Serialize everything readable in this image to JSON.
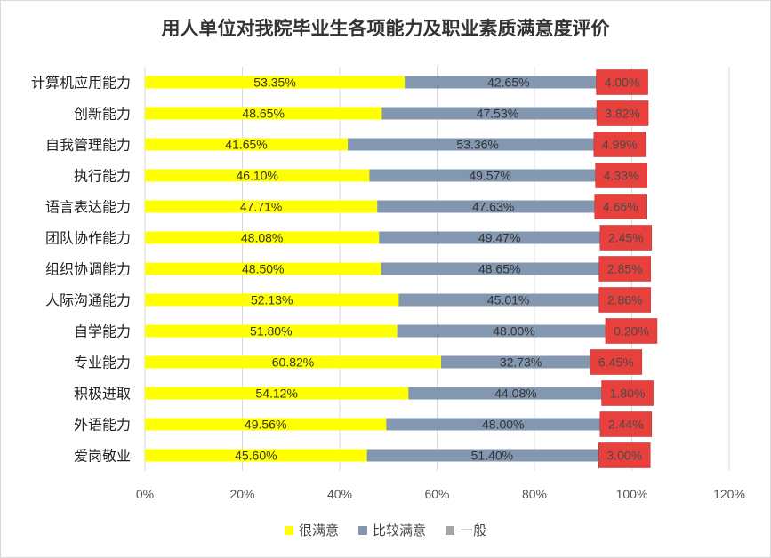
{
  "chart_data": {
    "type": "bar",
    "orientation": "horizontal",
    "stacked": true,
    "title": "用人单位对我院毕业生各项能力及职业素质满意度评价",
    "categories": [
      "计算机应用能力",
      "创新能力",
      "自我管理能力",
      "执行能力",
      "语言表达能力",
      "团队协作能力",
      "组织协调能力",
      "人际沟通能力",
      "自学能力",
      "专业能力",
      "积极进取",
      "外语能力",
      "爱岗敬业"
    ],
    "series": [
      {
        "name": "很满意",
        "color": "#ffff00",
        "values": [
          53.35,
          48.65,
          41.65,
          46.1,
          47.71,
          48.08,
          48.5,
          52.13,
          51.8,
          60.82,
          54.12,
          49.56,
          45.6
        ],
        "labels": [
          "53.35%",
          "48.65%",
          "41.65%",
          "46.10%",
          "47.71%",
          "48.08%",
          "48.50%",
          "52.13%",
          "51.80%",
          "60.82%",
          "54.12%",
          "49.56%",
          "45.60%"
        ]
      },
      {
        "name": "比较满意",
        "color": "#8497b0",
        "values": [
          42.65,
          47.53,
          53.36,
          49.57,
          47.63,
          49.47,
          48.65,
          45.01,
          48.0,
          32.73,
          44.08,
          48.0,
          51.4
        ],
        "labels": [
          "42.65%",
          "47.53%",
          "53.36%",
          "49.57%",
          "47.63%",
          "49.47%",
          "48.65%",
          "45.01%",
          "48.00%",
          "32.73%",
          "44.08%",
          "48.00%",
          "51.40%"
        ]
      },
      {
        "name": "一般",
        "color": "#a6a6a6",
        "values": [
          4.0,
          3.82,
          4.99,
          4.33,
          4.66,
          2.45,
          2.85,
          2.86,
          0.2,
          6.45,
          1.8,
          2.44,
          3.0
        ],
        "labels": [
          "4.00%",
          "3.82%",
          "4.99%",
          "4.33%",
          "4.66%",
          "2.45%",
          "2.85%",
          "2.86%",
          "0.20%",
          "6.45%",
          "1.80%",
          "2.44%",
          "3.00%"
        ]
      }
    ],
    "highlight_label_color": "#e8403c",
    "xlim": [
      0,
      120
    ],
    "xticks": [
      "0%",
      "20%",
      "40%",
      "60%",
      "80%",
      "100%",
      "120%"
    ],
    "grid": true,
    "legend_position": "bottom"
  }
}
